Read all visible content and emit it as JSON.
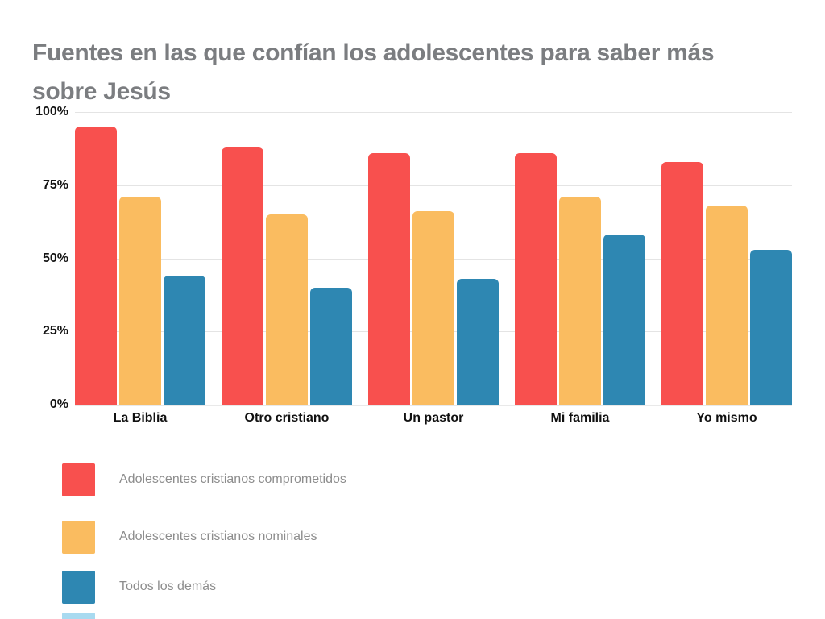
{
  "title": {
    "text": "Fuentes en las que confían los adolescentes para saber más sobre Jesús"
  },
  "chart_data": {
    "type": "bar",
    "title": "Fuentes en las que confían los adolescentes para saber más sobre Jesús",
    "categories": [
      "La Biblia",
      "Otro cristiano",
      "Un pastor",
      "Mi familia",
      "Yo mismo"
    ],
    "series": [
      {
        "name": "Adolescentes cristianos comprometidos",
        "color": "#f8504e",
        "values": [
          95,
          88,
          86,
          86,
          83
        ]
      },
      {
        "name": "Adolescentes cristianos nominales",
        "color": "#fabc60",
        "values": [
          71,
          65,
          66,
          71,
          68
        ]
      },
      {
        "name": "Todos los demás",
        "color": "#2e87b2",
        "values": [
          44,
          40,
          43,
          58,
          53
        ]
      }
    ],
    "xlabel": "",
    "ylabel": "",
    "ylim": [
      0,
      100
    ],
    "yticks": [
      {
        "label": "100%",
        "value": 100
      },
      {
        "label": "75%",
        "value": 75
      },
      {
        "label": "50%",
        "value": 50
      },
      {
        "label": "25%",
        "value": 25
      },
      {
        "label": "0%",
        "value": 0
      }
    ],
    "grid": true,
    "legend_position": "bottom-left"
  },
  "legend": {
    "items": [
      {
        "label": "Adolescentes cristianos comprometidos",
        "color": "#f8504e"
      },
      {
        "label": "Adolescentes cristianos nominales",
        "color": "#fabc60"
      },
      {
        "label": "Todos los demás",
        "color": "#2e87b2"
      }
    ],
    "partial_item_color": "#a8daf0"
  },
  "colors": {
    "background": "#ffffff",
    "title_text": "#7b7d80",
    "axis_text": "#141414",
    "legend_text": "#8d8d8d",
    "gridline": "#e4e4e4"
  }
}
